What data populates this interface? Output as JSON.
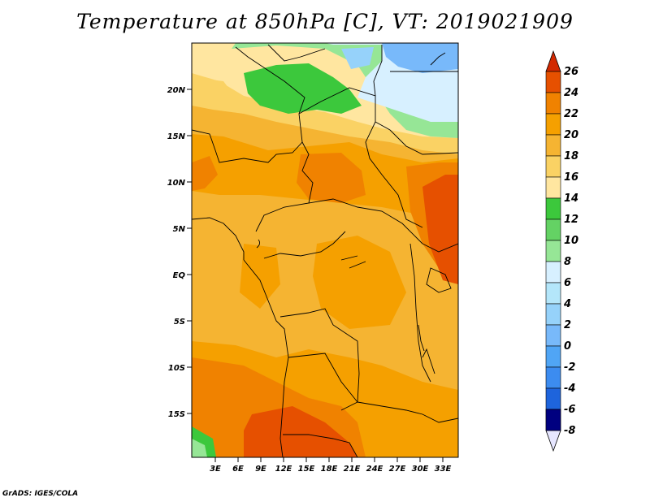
{
  "title": "Temperature at 850hPa [C], VT: 2019021909",
  "credit": "GrADS: IGES/COLA",
  "map": {
    "lat_labels": [
      "20N",
      "15N",
      "10N",
      "5N",
      "EQ",
      "5S",
      "10S",
      "15S"
    ],
    "lon_labels": [
      "3E",
      "6E",
      "9E",
      "12E",
      "15E",
      "18E",
      "21E",
      "24E",
      "27E",
      "30E",
      "33E"
    ]
  },
  "colorbar": {
    "levels": [
      "26",
      "24",
      "22",
      "20",
      "18",
      "16",
      "14",
      "12",
      "10",
      "8",
      "6",
      "4",
      "2",
      "0",
      "-2",
      "-4",
      "-6",
      "-8"
    ],
    "colors": [
      "#d7f0ff",
      "#b4e6fa",
      "#96d2fa",
      "#78b9fa",
      "#50a5f5",
      "#3c96f5",
      "#2882f0",
      "#1464d2",
      "#1e3cb4",
      "#000080",
      "#ffe6a0",
      "#fad264",
      "#f5b432",
      "#f5a000",
      "#f08200",
      "#e65000",
      "#d22800",
      "#3cc83c"
    ]
  }
}
